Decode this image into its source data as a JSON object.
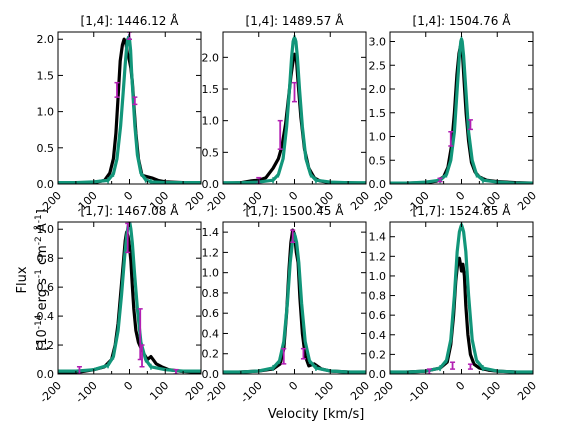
{
  "figure": {
    "xlabel": "Velocity [km/s]",
    "ylabel_line1": "Flux",
    "ylabel_line2_parts": [
      "[10",
      "-14",
      " erg s",
      "-1",
      " cm",
      "-2",
      " Å",
      "-1",
      "]"
    ]
  },
  "colors": {
    "observed": "#000000",
    "model": "#12967a",
    "errorbar": "#b21fb2",
    "axes": "#000000"
  },
  "chart_data": [
    {
      "type": "line",
      "title": "[1,4]: 1446.12 Å",
      "xlim": [
        -200,
        200
      ],
      "ylim": [
        0,
        2.1
      ],
      "xticks": [
        -200,
        -100,
        0,
        100,
        200
      ],
      "yticks": [
        0.0,
        0.5,
        1.0,
        1.5,
        2.0
      ],
      "ytick_labels": [
        "0.0",
        "0.5",
        "1.0",
        "1.5",
        "2.0"
      ],
      "series": [
        {
          "x": [
            -200,
            -150,
            -100,
            -70,
            -55,
            -45,
            -38,
            -32,
            -26,
            -20,
            -15,
            -10,
            -6,
            -3,
            0,
            4,
            8,
            13,
            18,
            25,
            35,
            50,
            65,
            80,
            100,
            150,
            200
          ],
          "y": [
            0.01,
            0.01,
            0.02,
            0.05,
            0.15,
            0.35,
            0.7,
            1.2,
            1.7,
            1.92,
            2.0,
            1.95,
            1.8,
            1.78,
            1.7,
            1.6,
            1.4,
            1.05,
            0.7,
            0.35,
            0.12,
            0.1,
            0.08,
            0.05,
            0.03,
            0.02,
            0.01
          ]
        },
        {
          "x": [
            -200,
            -150,
            -100,
            -60,
            -45,
            -35,
            -25,
            -18,
            -12,
            -8,
            -5,
            -2,
            0,
            3,
            6,
            10,
            15,
            22,
            32,
            45,
            60,
            100,
            150,
            200
          ],
          "y": [
            0.02,
            0.02,
            0.03,
            0.05,
            0.14,
            0.35,
            0.8,
            1.25,
            1.65,
            1.88,
            2.0,
            2.03,
            2.0,
            1.85,
            1.55,
            1.2,
            0.8,
            0.4,
            0.15,
            0.06,
            0.03,
            0.02,
            0.02,
            0.02
          ]
        }
      ],
      "errorbars": [
        {
          "x": -35,
          "ylo": 1.2,
          "yhi": 1.4
        },
        {
          "x": 15,
          "ylo": 1.1,
          "yhi": 1.2
        },
        {
          "x": 0,
          "ylo": 2.0,
          "yhi": 2.1
        }
      ]
    },
    {
      "type": "line",
      "title": "[1,4]: 1489.57 Å",
      "xlim": [
        -200,
        200
      ],
      "ylim": [
        0,
        2.4
      ],
      "xticks": [
        -200,
        -100,
        0,
        100,
        200
      ],
      "yticks": [
        0.0,
        0.5,
        1.0,
        1.5,
        2.0
      ],
      "ytick_labels": [
        "0.0",
        "0.5",
        "1.0",
        "1.5",
        "2.0"
      ],
      "series": [
        {
          "x": [
            -200,
            -150,
            -120,
            -100,
            -80,
            -60,
            -45,
            -35,
            -25,
            -18,
            -10,
            -5,
            0,
            5,
            10,
            18,
            28,
            40,
            55,
            70,
            90,
            110,
            150,
            200
          ],
          "y": [
            0.01,
            0.02,
            0.05,
            0.06,
            0.1,
            0.25,
            0.4,
            0.6,
            0.95,
            1.3,
            1.7,
            1.9,
            2.05,
            2.0,
            1.6,
            1.05,
            0.55,
            0.25,
            0.1,
            0.05,
            0.03,
            0.02,
            0.02,
            0.01
          ]
        },
        {
          "x": [
            -200,
            -150,
            -100,
            -60,
            -45,
            -32,
            -22,
            -14,
            -8,
            -4,
            -1,
            1,
            4,
            8,
            14,
            22,
            32,
            45,
            60,
            100,
            150,
            200
          ],
          "y": [
            0.02,
            0.02,
            0.03,
            0.06,
            0.15,
            0.4,
            0.9,
            1.5,
            2.0,
            2.25,
            2.3,
            2.3,
            2.25,
            2.0,
            1.5,
            0.9,
            0.4,
            0.15,
            0.06,
            0.03,
            0.02,
            0.02
          ]
        }
      ],
      "errorbars": [
        {
          "x": -40,
          "ylo": 0.55,
          "yhi": 1.0
        },
        {
          "x": 0,
          "ylo": 1.3,
          "yhi": 1.6
        },
        {
          "x": -100,
          "ylo": 0.0,
          "yhi": 0.1
        }
      ]
    },
    {
      "type": "line",
      "title": "[1,4]: 1504.76 Å",
      "xlim": [
        -200,
        200
      ],
      "ylim": [
        0,
        3.2
      ],
      "xticks": [
        -200,
        -100,
        0,
        100,
        200
      ],
      "yticks": [
        0.0,
        0.5,
        1.0,
        1.5,
        2.0,
        2.5,
        3.0
      ],
      "ytick_labels": [
        "0.0",
        "0.5",
        "1.0",
        "1.5",
        "2.0",
        "2.5",
        "3.0"
      ],
      "series": [
        {
          "x": [
            -200,
            -150,
            -100,
            -70,
            -50,
            -38,
            -28,
            -20,
            -13,
            -7,
            -3,
            0,
            3,
            7,
            13,
            20,
            28,
            38,
            50,
            70,
            100,
            150,
            200
          ],
          "y": [
            0.01,
            0.02,
            0.03,
            0.06,
            0.15,
            0.35,
            0.8,
            1.5,
            2.3,
            2.75,
            2.9,
            2.85,
            2.7,
            2.2,
            1.5,
            0.9,
            0.45,
            0.25,
            0.15,
            0.08,
            0.05,
            0.03,
            0.02
          ]
        },
        {
          "x": [
            -200,
            -150,
            -100,
            -60,
            -42,
            -30,
            -20,
            -12,
            -6,
            -2,
            0,
            2,
            6,
            12,
            20,
            30,
            42,
            60,
            100,
            150,
            200
          ],
          "y": [
            0.02,
            0.02,
            0.04,
            0.08,
            0.2,
            0.5,
            1.1,
            2.0,
            2.7,
            3.0,
            3.05,
            3.0,
            2.7,
            2.0,
            1.1,
            0.5,
            0.2,
            0.08,
            0.04,
            0.02,
            0.02
          ]
        }
      ],
      "errorbars": [
        {
          "x": -30,
          "ylo": 0.8,
          "yhi": 1.1
        },
        {
          "x": 25,
          "ylo": 1.15,
          "yhi": 1.35
        },
        {
          "x": -60,
          "ylo": 0.05,
          "yhi": 0.12
        }
      ]
    },
    {
      "type": "line",
      "title": "[1,7]: 1467.08 Å",
      "xlim": [
        -200,
        200
      ],
      "ylim": [
        0,
        1.05
      ],
      "xticks": [
        -200,
        -100,
        0,
        100,
        200
      ],
      "yticks": [
        0.0,
        0.2,
        0.4,
        0.6,
        0.8,
        1.0
      ],
      "ytick_labels": [
        "0.0",
        "0.2",
        "0.4",
        "0.6",
        "0.8",
        "1.0"
      ],
      "series": [
        {
          "x": [
            -200,
            -150,
            -100,
            -70,
            -50,
            -40,
            -32,
            -25,
            -18,
            -12,
            -8,
            -4,
            0,
            4,
            8,
            12,
            18,
            25,
            32,
            40,
            50,
            60,
            75,
            90,
            110,
            140,
            200
          ],
          "y": [
            0.01,
            0.01,
            0.03,
            0.05,
            0.1,
            0.2,
            0.35,
            0.55,
            0.75,
            0.92,
            0.98,
            0.95,
            0.88,
            0.78,
            0.6,
            0.45,
            0.3,
            0.22,
            0.18,
            0.14,
            0.1,
            0.12,
            0.07,
            0.05,
            0.03,
            0.02,
            0.01
          ]
        },
        {
          "x": [
            -200,
            -150,
            -100,
            -60,
            -45,
            -32,
            -22,
            -14,
            -8,
            -4,
            -1,
            1,
            4,
            8,
            14,
            22,
            32,
            45,
            60,
            100,
            150,
            200
          ],
          "y": [
            0.02,
            0.02,
            0.03,
            0.06,
            0.12,
            0.3,
            0.55,
            0.8,
            0.95,
            1.02,
            1.04,
            1.04,
            1.0,
            0.9,
            0.7,
            0.45,
            0.22,
            0.1,
            0.05,
            0.03,
            0.02,
            0.02
          ]
        }
      ],
      "errorbars": [
        {
          "x": -5,
          "ylo": 0.84,
          "yhi": 1.04
        },
        {
          "x": 30,
          "ylo": 0.1,
          "yhi": 0.45
        },
        {
          "x": 35,
          "ylo": 0.05,
          "yhi": 0.2
        },
        {
          "x": -140,
          "ylo": 0.0,
          "yhi": 0.05
        },
        {
          "x": 130,
          "ylo": 0.0,
          "yhi": 0.03
        }
      ]
    },
    {
      "type": "line",
      "title": "[1,7]: 1500.45 Å",
      "xlim": [
        -200,
        200
      ],
      "ylim": [
        0,
        1.5
      ],
      "xticks": [
        -200,
        -100,
        0,
        100,
        200
      ],
      "yticks": [
        0.0,
        0.2,
        0.4,
        0.6,
        0.8,
        1.0,
        1.2,
        1.4
      ],
      "ytick_labels": [
        "0.0",
        "0.2",
        "0.4",
        "0.6",
        "0.8",
        "1.0",
        "1.2",
        "1.4"
      ],
      "series": [
        {
          "x": [
            -200,
            -150,
            -100,
            -60,
            -40,
            -30,
            -22,
            -15,
            -10,
            -5,
            0,
            5,
            10,
            15,
            22,
            30,
            40,
            55,
            75,
            100,
            150,
            200
          ],
          "y": [
            0.01,
            0.02,
            0.03,
            0.05,
            0.1,
            0.25,
            0.6,
            1.05,
            1.3,
            1.42,
            1.38,
            1.2,
            1.1,
            0.75,
            0.4,
            0.18,
            0.08,
            0.1,
            0.05,
            0.03,
            0.02,
            0.01
          ]
        },
        {
          "x": [
            -200,
            -150,
            -100,
            -60,
            -42,
            -30,
            -20,
            -12,
            -6,
            -2,
            0,
            2,
            6,
            12,
            20,
            30,
            42,
            60,
            100,
            150,
            200
          ],
          "y": [
            0.02,
            0.02,
            0.03,
            0.06,
            0.13,
            0.32,
            0.7,
            1.1,
            1.3,
            1.36,
            1.37,
            1.36,
            1.3,
            1.1,
            0.7,
            0.32,
            0.13,
            0.06,
            0.03,
            0.02,
            0.02
          ]
        }
      ],
      "errorbars": [
        {
          "x": -30,
          "ylo": 0.1,
          "yhi": 0.25
        },
        {
          "x": 25,
          "ylo": 0.15,
          "yhi": 0.25
        },
        {
          "x": -5,
          "ylo": 1.3,
          "yhi": 1.42
        }
      ]
    },
    {
      "type": "line",
      "title": "[1,7]: 1524.65 Å",
      "xlim": [
        -200,
        200
      ],
      "ylim": [
        0,
        1.55
      ],
      "xticks": [
        -200,
        -100,
        0,
        100,
        200
      ],
      "yticks": [
        0.0,
        0.2,
        0.4,
        0.6,
        0.8,
        1.0,
        1.2,
        1.4
      ],
      "ytick_labels": [
        "0.0",
        "0.2",
        "0.4",
        "0.6",
        "0.8",
        "1.0",
        "1.2",
        "1.4"
      ],
      "series": [
        {
          "x": [
            -200,
            -150,
            -100,
            -60,
            -40,
            -30,
            -22,
            -16,
            -10,
            -6,
            -2,
            0,
            4,
            8,
            12,
            18,
            25,
            35,
            50,
            75,
            100,
            150,
            200
          ],
          "y": [
            0.01,
            0.02,
            0.03,
            0.06,
            0.12,
            0.3,
            0.6,
            0.95,
            1.15,
            1.18,
            1.1,
            1.05,
            1.12,
            1.0,
            0.7,
            0.4,
            0.2,
            0.1,
            0.06,
            0.04,
            0.03,
            0.02,
            0.01
          ]
        },
        {
          "x": [
            -200,
            -150,
            -100,
            -60,
            -42,
            -30,
            -20,
            -12,
            -6,
            -2,
            0,
            2,
            6,
            12,
            20,
            30,
            42,
            60,
            100,
            150,
            200
          ],
          "y": [
            0.02,
            0.02,
            0.03,
            0.06,
            0.14,
            0.35,
            0.8,
            1.25,
            1.45,
            1.5,
            1.52,
            1.5,
            1.45,
            1.25,
            0.8,
            0.35,
            0.14,
            0.06,
            0.03,
            0.02,
            0.02
          ]
        }
      ],
      "errorbars": [
        {
          "x": -25,
          "ylo": 0.05,
          "yhi": 0.12
        },
        {
          "x": -90,
          "ylo": 0.0,
          "yhi": 0.05
        },
        {
          "x": 25,
          "ylo": 0.05,
          "yhi": 0.1
        }
      ]
    }
  ]
}
